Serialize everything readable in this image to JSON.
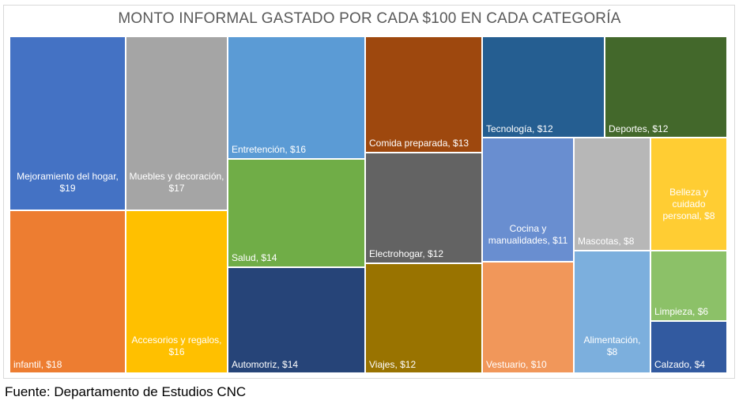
{
  "chart_data": {
    "type": "treemap",
    "title": "MONTO INFORMAL GASTADO POR CADA $100 EN CADA CATEGORÍA",
    "unit": "$",
    "items": [
      {
        "label": "Mejoramiento del hogar, $19",
        "value": 19,
        "color": "#4472C4"
      },
      {
        "label": "infantil, $18",
        "value": 18,
        "color": "#ED7D31"
      },
      {
        "label": "Muebles y decoración, $17",
        "value": 17,
        "color": "#A5A5A5"
      },
      {
        "label": "Accesorios y regalos, $16",
        "value": 16,
        "color": "#FFC000"
      },
      {
        "label": "Entretención, $16",
        "value": 16,
        "color": "#5B9BD5"
      },
      {
        "label": "Salud, $14",
        "value": 14,
        "color": "#70AD47"
      },
      {
        "label": "Automotriz, $14",
        "value": 14,
        "color": "#264478"
      },
      {
        "label": "Comida preparada, $13",
        "value": 13,
        "color": "#9E480E"
      },
      {
        "label": "Electrohogar, $12",
        "value": 12,
        "color": "#636363"
      },
      {
        "label": "Viajes, $12",
        "value": 12,
        "color": "#997300"
      },
      {
        "label": "Tecnología, $12",
        "value": 12,
        "color": "#255E91"
      },
      {
        "label": "Deportes, $12",
        "value": 12,
        "color": "#43682B"
      },
      {
        "label": "Cocina y manualidades, $11",
        "value": 11,
        "color": "#698ED0"
      },
      {
        "label": "Vestuario, $10",
        "value": 10,
        "color": "#F1975A"
      },
      {
        "label": "Mascotas, $8",
        "value": 8,
        "color": "#B7B7B7"
      },
      {
        "label": "Belleza y cuidado personal, $8",
        "value": 8,
        "color": "#FFCD33"
      },
      {
        "label": "Alimentación, $8",
        "value": 8,
        "color": "#7CAFDD"
      },
      {
        "label": "Limpieza, $6",
        "value": 6,
        "color": "#8CC168"
      },
      {
        "label": "Calzado, $4",
        "value": 4,
        "color": "#325AA0"
      }
    ]
  },
  "source": "Fuente: Departamento de Estudios CNC"
}
